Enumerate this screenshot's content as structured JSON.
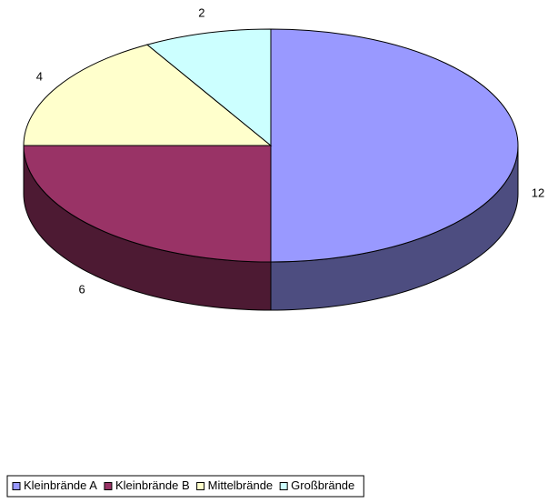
{
  "chart_data": {
    "type": "pie3d",
    "categories": [
      "Kleinbrände A",
      "Kleinbrände B",
      "Mittelbrände",
      "Großbrände"
    ],
    "values": [
      12,
      6,
      4,
      2
    ],
    "colors": [
      "#9999ff",
      "#993366",
      "#ffffcc",
      "#ccffff"
    ],
    "legend": "bottom"
  }
}
